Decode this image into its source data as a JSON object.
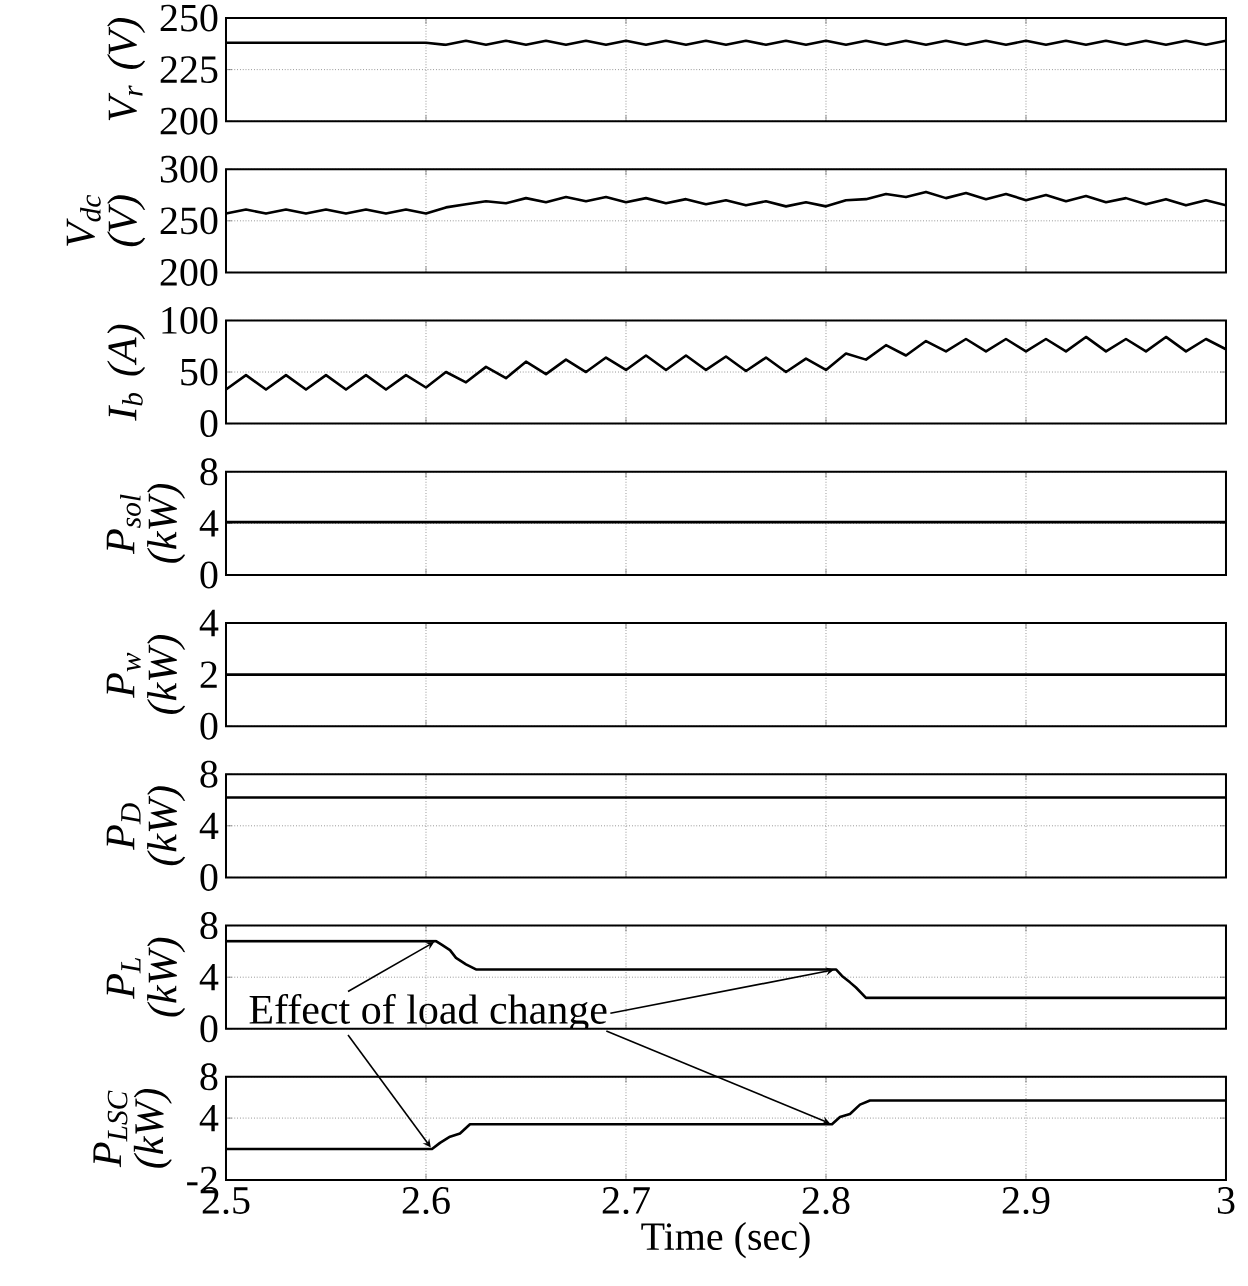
{
  "chart_data": [
    {
      "type": "line",
      "ylabel": "V$_{r}$ (V)",
      "xlim": [
        2.5,
        3
      ],
      "xticks": [
        2.5,
        2.6,
        2.7,
        2.8,
        2.9,
        3
      ],
      "ylim": [
        200,
        250
      ],
      "yticks": [
        200,
        225,
        250
      ],
      "grid": true,
      "tick_labels": "y",
      "color": "#000000",
      "x": [
        2.5,
        2.51,
        2.52,
        2.53,
        2.54,
        2.55,
        2.56,
        2.57,
        2.58,
        2.59,
        2.6,
        2.61,
        2.62,
        2.63,
        2.64,
        2.65,
        2.66,
        2.67,
        2.68,
        2.69,
        2.7,
        2.71,
        2.72,
        2.73,
        2.74,
        2.75,
        2.76,
        2.77,
        2.78,
        2.79,
        2.8,
        2.81,
        2.82,
        2.83,
        2.84,
        2.85,
        2.86,
        2.87,
        2.88,
        2.89,
        2.9,
        2.91,
        2.92,
        2.93,
        2.94,
        2.95,
        2.96,
        2.97,
        2.98,
        2.99,
        3
      ],
      "values": [
        238,
        238,
        238,
        238,
        238,
        238,
        238,
        238,
        238,
        238,
        238,
        237,
        239,
        237,
        239,
        237,
        239,
        237,
        239,
        237,
        239,
        237,
        239,
        237,
        239,
        237,
        239,
        237,
        239,
        237,
        239,
        237,
        239,
        237,
        239,
        237,
        239,
        237,
        239,
        237,
        239,
        237,
        239,
        237,
        239,
        237,
        239,
        237,
        239,
        237,
        239
      ]
    },
    {
      "type": "line",
      "ylabel": "V$_{dc}$ (V)",
      "xlim": [
        2.5,
        3
      ],
      "xticks": [
        2.5,
        2.6,
        2.7,
        2.8,
        2.9,
        3
      ],
      "ylim": [
        200,
        300
      ],
      "yticks": [
        200,
        250,
        300
      ],
      "grid": true,
      "tick_labels": "y",
      "color": "#000000",
      "x": [
        2.5,
        2.51,
        2.52,
        2.53,
        2.54,
        2.55,
        2.56,
        2.57,
        2.58,
        2.59,
        2.6,
        2.61,
        2.62,
        2.63,
        2.64,
        2.65,
        2.66,
        2.67,
        2.68,
        2.69,
        2.7,
        2.71,
        2.72,
        2.73,
        2.74,
        2.75,
        2.76,
        2.77,
        2.78,
        2.79,
        2.8,
        2.81,
        2.82,
        2.83,
        2.84,
        2.85,
        2.86,
        2.87,
        2.88,
        2.89,
        2.9,
        2.91,
        2.92,
        2.93,
        2.94,
        2.95,
        2.96,
        2.97,
        2.98,
        2.99,
        3
      ],
      "values": [
        257,
        261,
        257,
        261,
        257,
        261,
        257,
        261,
        257,
        261,
        257,
        263,
        266,
        269,
        267,
        272,
        268,
        273,
        269,
        273,
        268,
        272,
        267,
        271,
        266,
        270,
        265,
        269,
        264,
        268,
        264,
        270,
        271,
        276,
        273,
        278,
        272,
        277,
        271,
        276,
        270,
        275,
        269,
        274,
        268,
        272,
        266,
        271,
        265,
        270,
        265
      ]
    },
    {
      "type": "line",
      "ylabel": "I$_{b}$ (A)",
      "xlim": [
        2.5,
        3
      ],
      "xticks": [
        2.5,
        2.6,
        2.7,
        2.8,
        2.9,
        3
      ],
      "ylim": [
        0,
        100
      ],
      "yticks": [
        0,
        50,
        100
      ],
      "grid": true,
      "tick_labels": "y",
      "color": "#000000",
      "x": [
        2.5,
        2.51,
        2.52,
        2.53,
        2.54,
        2.55,
        2.56,
        2.57,
        2.58,
        2.59,
        2.6,
        2.61,
        2.62,
        2.63,
        2.64,
        2.65,
        2.66,
        2.67,
        2.68,
        2.69,
        2.7,
        2.71,
        2.72,
        2.73,
        2.74,
        2.75,
        2.76,
        2.77,
        2.78,
        2.79,
        2.8,
        2.81,
        2.82,
        2.83,
        2.84,
        2.85,
        2.86,
        2.87,
        2.88,
        2.89,
        2.9,
        2.91,
        2.92,
        2.93,
        2.94,
        2.95,
        2.96,
        2.97,
        2.98,
        2.99,
        3
      ],
      "values": [
        33,
        47,
        33,
        47,
        33,
        47,
        33,
        47,
        33,
        47,
        35,
        50,
        40,
        55,
        44,
        60,
        48,
        62,
        50,
        64,
        52,
        66,
        52,
        66,
        52,
        65,
        51,
        64,
        50,
        63,
        52,
        68,
        62,
        76,
        66,
        80,
        70,
        82,
        70,
        82,
        70,
        82,
        70,
        84,
        70,
        82,
        70,
        84,
        70,
        82,
        72
      ]
    },
    {
      "type": "line",
      "ylabel": "P$_{sol}$ (kW)",
      "xlim": [
        2.5,
        3
      ],
      "xticks": [
        2.5,
        2.6,
        2.7,
        2.8,
        2.9,
        3
      ],
      "ylim": [
        0,
        8
      ],
      "yticks": [
        0,
        4,
        8
      ],
      "grid": true,
      "tick_labels": "y",
      "color": "#000000",
      "x": [
        2.5,
        3
      ],
      "values": [
        4.1,
        4.1
      ]
    },
    {
      "type": "line",
      "ylabel": "P$_{w}$ (kW)",
      "xlim": [
        2.5,
        3
      ],
      "xticks": [
        2.5,
        2.6,
        2.7,
        2.8,
        2.9,
        3
      ],
      "ylim": [
        0,
        4
      ],
      "yticks": [
        0,
        2,
        4
      ],
      "grid": true,
      "tick_labels": "y",
      "color": "#000000",
      "x": [
        2.5,
        3
      ],
      "values": [
        2,
        2
      ]
    },
    {
      "type": "line",
      "ylabel": "P$_{D}$ (kW)",
      "xlim": [
        2.5,
        3
      ],
      "xticks": [
        2.5,
        2.6,
        2.7,
        2.8,
        2.9,
        3
      ],
      "ylim": [
        0,
        8
      ],
      "yticks": [
        0,
        4,
        8
      ],
      "grid": true,
      "tick_labels": "y",
      "color": "#000000",
      "x": [
        2.5,
        3
      ],
      "values": [
        6.2,
        6.2
      ]
    },
    {
      "type": "line",
      "ylabel": "P$_{L}$ (kW)",
      "xlim": [
        2.5,
        3
      ],
      "xticks": [
        2.5,
        2.6,
        2.7,
        2.8,
        2.9,
        3
      ],
      "ylim": [
        0,
        8
      ],
      "yticks": [
        0,
        4,
        8
      ],
      "grid": true,
      "tick_labels": "y",
      "color": "#000000",
      "annotations": [
        {
          "text": "Effect of load change",
          "x": 2.605,
          "y": 6.8
        }
      ],
      "x": [
        2.5,
        2.605,
        2.608,
        2.612,
        2.615,
        2.62,
        2.625,
        2.805,
        2.808,
        2.812,
        2.815,
        2.82,
        3.0
      ],
      "values": [
        6.8,
        6.8,
        6.5,
        6.1,
        5.5,
        5.0,
        4.6,
        4.6,
        4.1,
        3.6,
        3.2,
        2.4,
        2.4
      ]
    },
    {
      "type": "line",
      "ylabel": "P$_{LSC}$ (kW)",
      "xlabel": "Time (sec)",
      "xlim": [
        2.5,
        3
      ],
      "xticks": [
        2.5,
        2.6,
        2.7,
        2.8,
        2.9,
        3
      ],
      "ylim": [
        -2,
        8
      ],
      "yticks": [
        -2,
        4,
        8
      ],
      "grid": true,
      "color": "#000000",
      "x": [
        2.5,
        2.603,
        2.607,
        2.612,
        2.617,
        2.622,
        2.803,
        2.807,
        2.812,
        2.817,
        2.822,
        3.0
      ],
      "values": [
        1.0,
        1.0,
        1.6,
        2.2,
        2.5,
        3.4,
        3.4,
        4.1,
        4.4,
        5.3,
        5.7,
        5.7
      ]
    }
  ]
}
